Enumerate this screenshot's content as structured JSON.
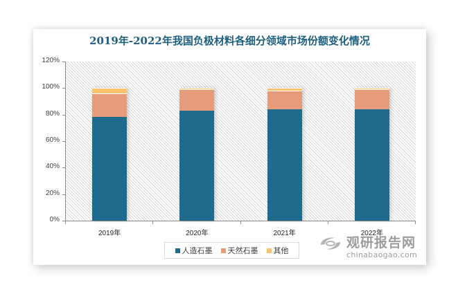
{
  "title": "2019年-2022年我国负极材料各细分领域市场份额变化情况",
  "colors": {
    "artificial_graphite": "#1f6b8e",
    "natural_graphite": "#e69b7b",
    "other": "#fcc36e",
    "title": "#1f5f7f"
  },
  "y_axis": {
    "ticks": [
      "0%",
      "20%",
      "40%",
      "60%",
      "80%",
      "100%",
      "120%"
    ]
  },
  "x_axis": {
    "categories": [
      "2019年",
      "2020年",
      "2021年",
      "2022年"
    ]
  },
  "legend": {
    "items": [
      {
        "label": "人造石墨",
        "color": "#1f6b8e"
      },
      {
        "label": "天然石墨",
        "color": "#e69b7b"
      },
      {
        "label": "其他",
        "color": "#fcc36e"
      }
    ]
  },
  "watermark": {
    "cn": "观研报告网",
    "en": "chinabaogao.com"
  },
  "chart_data": {
    "type": "bar",
    "stacked": true,
    "title": "2019年-2022年我国负极材料各细分领域市场份额变化情况",
    "xlabel": "",
    "ylabel": "",
    "categories": [
      "2019年",
      "2020年",
      "2021年",
      "2022年"
    ],
    "series": [
      {
        "name": "人造石墨",
        "values": [
          78,
          83,
          84,
          84
        ]
      },
      {
        "name": "天然石墨",
        "values": [
          18,
          16,
          14,
          15
        ]
      },
      {
        "name": "其他",
        "values": [
          4,
          1,
          2,
          1
        ]
      }
    ],
    "ylim": [
      0,
      120
    ],
    "y_tick_format": "percent",
    "y_ticks": [
      0,
      20,
      40,
      60,
      80,
      100,
      120
    ],
    "grid": false,
    "legend_position": "bottom"
  }
}
